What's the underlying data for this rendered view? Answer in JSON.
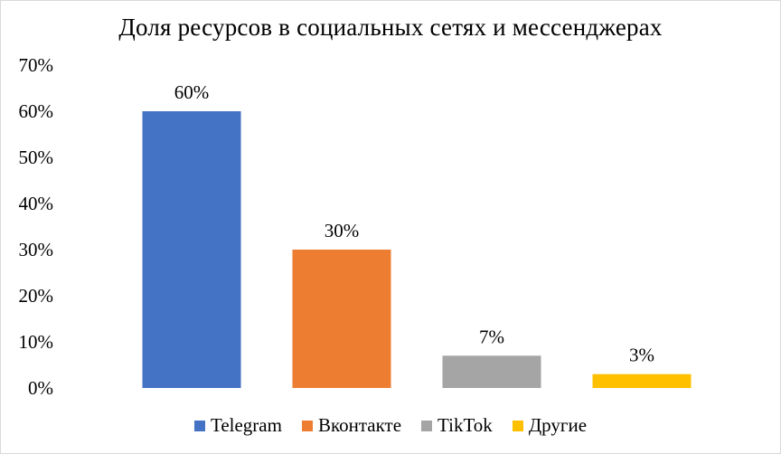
{
  "chart_data": {
    "type": "bar",
    "title": "Доля ресурсов  в социальных сетях и мессенджерах",
    "categories": [
      "Telegram",
      "Вконтакте",
      "TikTok",
      "Другие"
    ],
    "values": [
      60,
      30,
      7,
      3
    ],
    "data_labels": [
      "60%",
      "30%",
      "7%",
      "3%"
    ],
    "colors": [
      "#4472c4",
      "#ed7d31",
      "#a5a5a5",
      "#ffc000"
    ],
    "yticks": [
      "0%",
      "10%",
      "20%",
      "30%",
      "40%",
      "50%",
      "60%",
      "70%"
    ],
    "ylim": [
      0,
      70
    ],
    "grid": false,
    "legend": "bottom"
  }
}
